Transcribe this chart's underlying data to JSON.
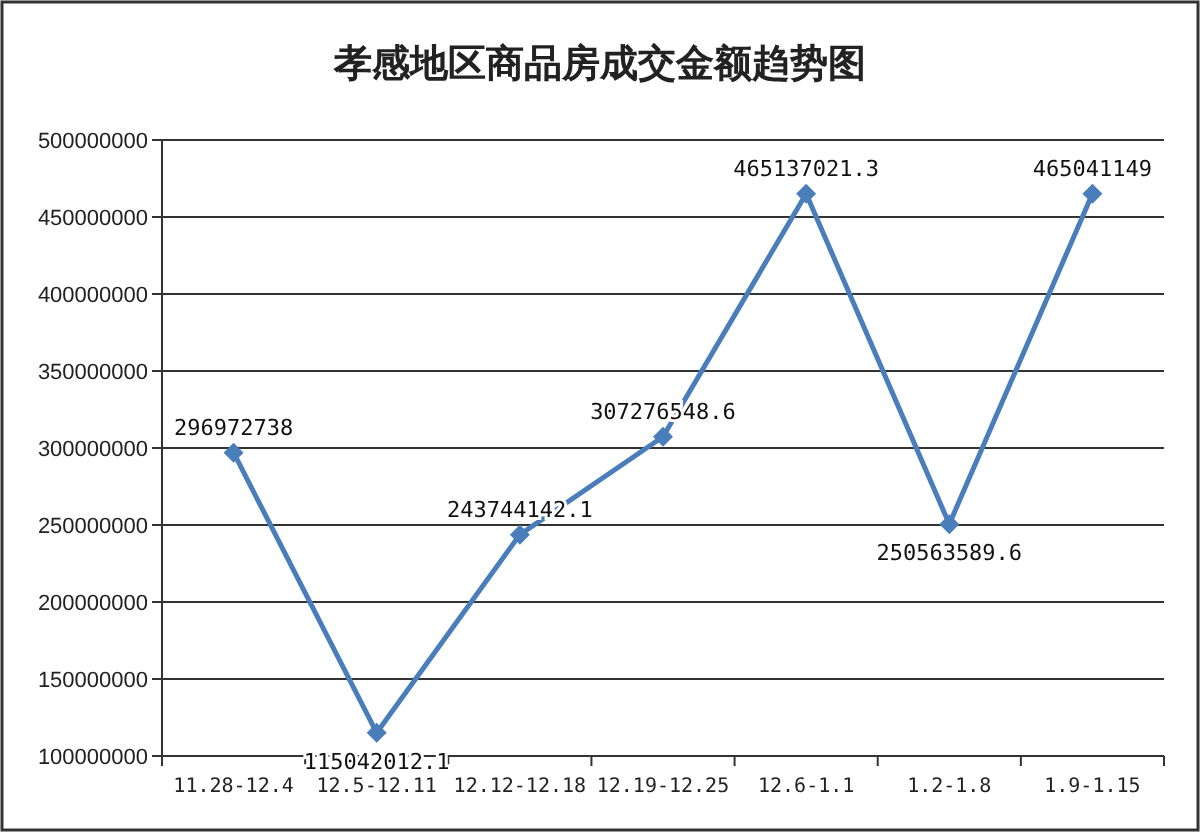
{
  "chart_data": {
    "type": "line",
    "title": "孝感地区商品房成交金额趋势图",
    "categories": [
      "11.28-12.4",
      "12.5-12.11",
      "12.12-12.18",
      "12.19-12.25",
      "12.6-1.1",
      "1.2-1.8",
      "1.9-1.15"
    ],
    "series": [
      {
        "color": "#4a7ebb",
        "values": [
          296972738,
          115042012.1,
          243744142.1,
          307276548.6,
          465137021.3,
          250563589.6,
          465041149
        ]
      }
    ],
    "ylim": [
      100000000,
      500000000
    ],
    "yticks": [
      100000000,
      150000000,
      200000000,
      250000000,
      300000000,
      350000000,
      400000000,
      450000000,
      500000000
    ],
    "grid": "y",
    "marker": "diamond",
    "line_style": "solid",
    "data_labels": true
  }
}
